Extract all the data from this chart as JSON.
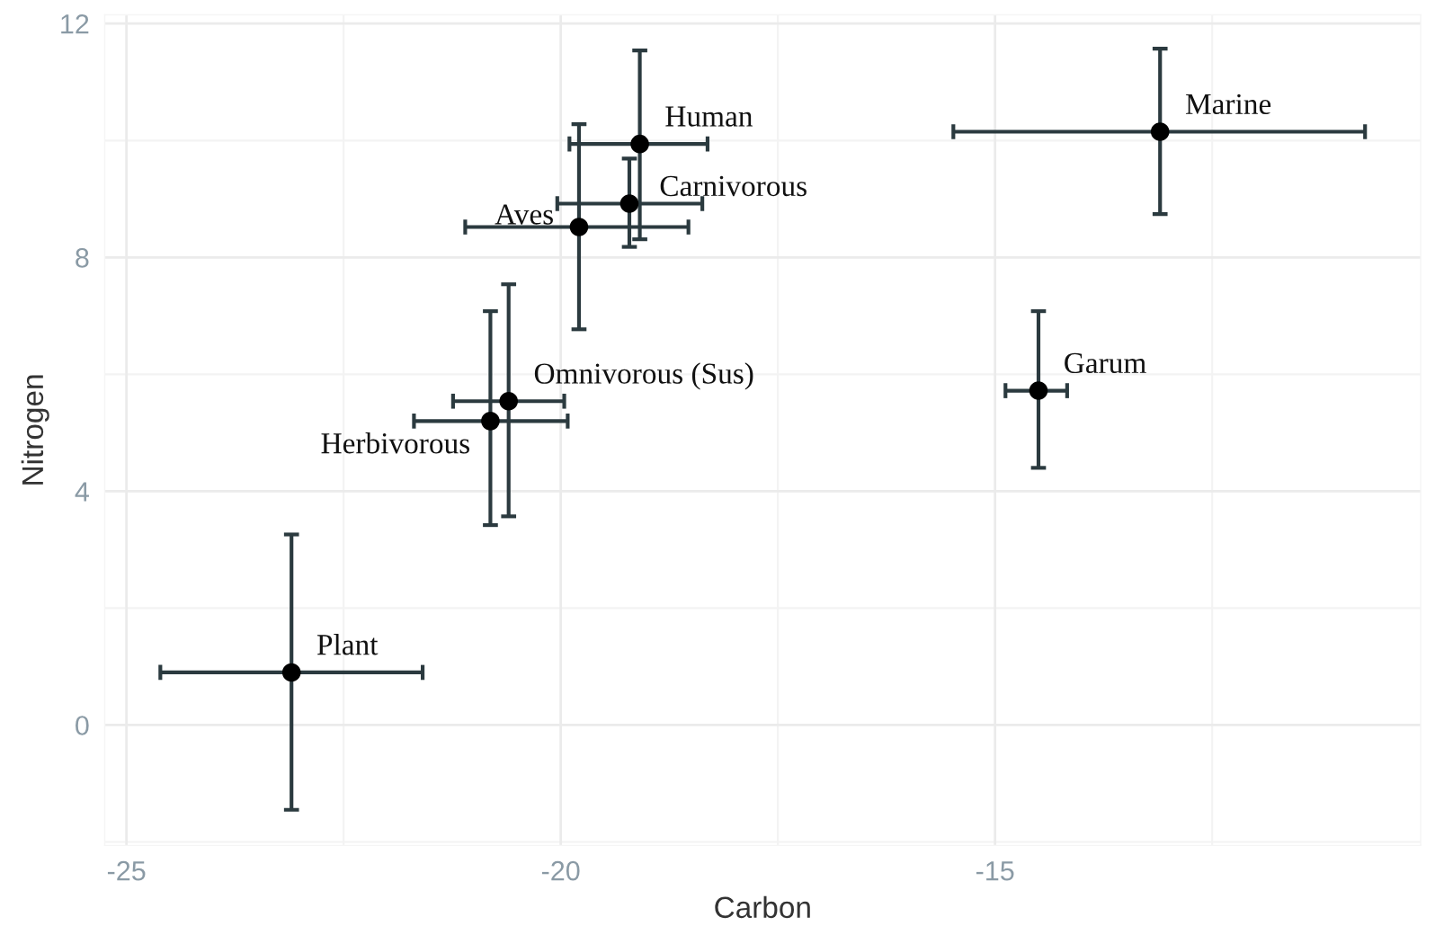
{
  "chart_data": {
    "type": "scatter",
    "xlabel": "Carbon",
    "ylabel": "Nitrogen",
    "x": [
      -23.1,
      -20.81,
      -20.6,
      -19.79,
      -19.21,
      -19.09,
      -13.1,
      -14.5
    ],
    "values": [
      0.9,
      5.2,
      5.54,
      8.52,
      8.92,
      9.94,
      10.15,
      5.72
    ],
    "errors": [
      [
        -1.45,
        3.26
      ],
      [
        3.42,
        7.08
      ],
      [
        3.57,
        7.54
      ],
      [
        6.77,
        10.28
      ],
      [
        8.18,
        9.69
      ],
      [
        8.31,
        11.54
      ],
      [
        8.74,
        11.57
      ],
      [
        4.4,
        7.08
      ]
    ],
    "xerrors": [
      [
        -24.61,
        -21.59
      ],
      [
        -21.69,
        -19.92
      ],
      [
        -21.24,
        -19.96
      ],
      [
        -21.1,
        -18.53
      ],
      [
        -20.04,
        -18.37
      ],
      [
        -19.9,
        -18.31
      ],
      [
        -15.48,
        -10.74
      ],
      [
        -14.88,
        -14.17
      ]
    ],
    "color": "#000000",
    "marker": "circle",
    "grid": true,
    "xlim": [
      -25.25,
      -10.1
    ],
    "ylim": [
      -2.06,
      12.15
    ],
    "xticks": [
      -25,
      -20,
      -15
    ],
    "yticks": [
      0,
      4,
      8,
      12
    ],
    "annotations": [
      {
        "text": "Plant",
        "x": -23.1,
        "y": 0.9
      },
      {
        "text": "Herbivorous",
        "x": -20.81,
        "y": 5.2
      },
      {
        "text": "Omnivorous (Sus)",
        "x": -20.6,
        "y": 5.54
      },
      {
        "text": "Aves",
        "x": -19.79,
        "y": 8.52
      },
      {
        "text": "Carnivorous",
        "x": -19.21,
        "y": 8.92
      },
      {
        "text": "Human",
        "x": -19.09,
        "y": 9.94
      },
      {
        "text": "Marine",
        "x": -13.1,
        "y": 10.15
      },
      {
        "text": "Garum",
        "x": -14.5,
        "y": 5.72
      }
    ]
  }
}
